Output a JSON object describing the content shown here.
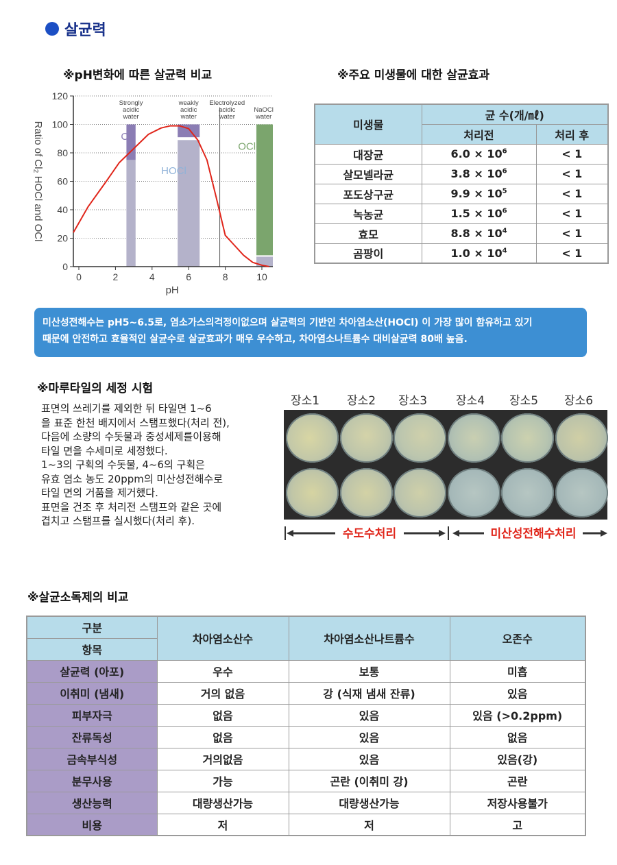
{
  "section": {
    "title": "살균력"
  },
  "chart_section": {
    "title": "※pH변화에 따른 살균력 비교"
  },
  "chart_data": {
    "type": "line",
    "ylabel": "Ratio of Cl₂ HOCl and OCl",
    "xlabel": "pH",
    "xlim": [
      -0.3,
      10.6
    ],
    "ylim": [
      0,
      120
    ],
    "x_ticks": [
      "0",
      "2",
      "4",
      "6",
      "8",
      "10"
    ],
    "y_ticks": [
      "0",
      "20",
      "40",
      "60",
      "80",
      "100",
      "120"
    ],
    "grid": true,
    "bars": [
      {
        "label": "Strongly acidic water",
        "x_from": 2.6,
        "x_to": 3.1,
        "segments": [
          {
            "name": "Cl₂",
            "from": 75,
            "to": 100,
            "color": "#8b7db4"
          },
          {
            "name": "HOCl",
            "from": 0,
            "to": 75,
            "color": "#b4b2ca"
          }
        ]
      },
      {
        "label": "weakly acidic water",
        "x_from": 5.4,
        "x_to": 6.6,
        "segments": [
          {
            "name": "Cl₂",
            "from": 91,
            "to": 100,
            "color": "#8b7db4"
          },
          {
            "name": "HOCl",
            "from": 0,
            "to": 89,
            "color": "#b4b2ca"
          }
        ]
      },
      {
        "label": "NaOCl water",
        "x_from": 9.7,
        "x_to": 10.6,
        "segments": [
          {
            "name": "OCl-",
            "from": 8,
            "to": 100,
            "color": "#7ba56d"
          },
          {
            "name": "HOCl",
            "from": 0,
            "to": 7,
            "color": "#b4b2ca"
          }
        ]
      }
    ],
    "column_labels": [
      {
        "text": [
          "Strongly",
          "acidic",
          "water"
        ],
        "x": 2.85
      },
      {
        "text": [
          "weakly",
          "acidic",
          "water"
        ],
        "x": 6.0
      },
      {
        "text": [
          "Electrolyzed",
          "acidic",
          "water"
        ],
        "x": 8.1
      },
      {
        "text": [
          "NaOCl",
          "water"
        ],
        "x": 10.1
      }
    ],
    "region_labels": [
      {
        "text": "Cl₂",
        "x": 2.3,
        "y": 92,
        "color": "#8b7db4"
      },
      {
        "text": "HOCl",
        "x": 4.5,
        "y": 68,
        "color": "#8fb2d8"
      },
      {
        "text": "OCl-",
        "x": 8.7,
        "y": 85,
        "color": "#7ba56d"
      }
    ],
    "divider_x": 7.7,
    "series": [
      {
        "color": "#e0261b",
        "x": [
          -0.3,
          0.5,
          1.5,
          2.2,
          3.0,
          3.8,
          4.5,
          5.0,
          5.5,
          6.0,
          6.5,
          7.0,
          7.5,
          8.0,
          8.5,
          9.0,
          9.5,
          10.0,
          10.4
        ],
        "y": [
          24,
          42,
          60,
          73,
          83,
          93,
          97.5,
          99,
          99,
          97,
          89,
          75,
          49,
          22,
          15,
          8,
          3,
          1,
          0
        ]
      }
    ]
  },
  "micro_section": {
    "title": "※주요 미생물에 대한 살균효과"
  },
  "micro_table": {
    "col1": "미생물",
    "group": "균 수(개/㎖)",
    "before": "처리전",
    "after": "처리 후",
    "rows": [
      {
        "name": "대장균",
        "mant": "6.0 × 10",
        "exp": "6",
        "after": "< 1"
      },
      {
        "name": "살모넬라균",
        "mant": "3.8 × 10",
        "exp": "6",
        "after": "< 1"
      },
      {
        "name": "포도상구균",
        "mant": "9.9 × 10",
        "exp": "5",
        "after": "< 1"
      },
      {
        "name": "녹농균",
        "mant": "1.5 × 10",
        "exp": "6",
        "after": "< 1"
      },
      {
        "name": "효모",
        "mant": "8.8 × 10",
        "exp": "4",
        "after": "< 1"
      },
      {
        "name": "곰팡이",
        "mant": "1.0 × 10",
        "exp": "4",
        "after": "< 1"
      }
    ]
  },
  "info": {
    "line1": "미산성전해수는 pH5~6.5로, 염소가스의걱정이없으며 살균력의 기반인 차아염소산(HOCl) 이 가장 많이 함유하고 있기",
    "line2": "때문에 안전하고 효율적인 살균수로 살균효과가 매우 우수하고, 차아염소나트륨수 대비살균력 80배 높음."
  },
  "tile_section": {
    "title": "※마루타일의 세정 시험"
  },
  "tile_text": [
    "표면의 쓰레기를 제외한 뒤 타일면 1~6",
    "을 표준 한천 배지에서 스탬프했다(처리 전),",
    "다음에 소량의 수돗물과 중성세제를이용해",
    "타일 면을 수세미로 세정했다.",
    "1~3의 구획의 수돗물, 4~6의 구획은",
    "유효 염소 농도 20ppm의 미산성전해수로",
    "타일 면의 거품을 제거했다.",
    "표면을 건조 후 처리전 스탬프와 같은 곳에",
    "겹치고 스탬프를 실시했다(처리 후)."
  ],
  "locations": [
    "장소1",
    "장소2",
    "장소3",
    "장소4",
    "장소5",
    "장소6"
  ],
  "arrows": {
    "tap": "수도수처리",
    "electrolyzed": "미산성전해수처리",
    "color": "#e0261b"
  },
  "compare_section": {
    "title": "※살균소독제의 비교"
  },
  "compare_table": {
    "h_top": "구분",
    "h_bottom": "항목",
    "cols": [
      "차아염소산수",
      "차아염소산나트륨수",
      "오존수"
    ],
    "rows": [
      {
        "label": "살균력 (아포)",
        "vals": [
          "우수",
          "보통",
          "미흡"
        ]
      },
      {
        "label": "이취미 (냄새)",
        "vals": [
          "거의 없음",
          "강 (식재 냄새 잔류)",
          "있음"
        ]
      },
      {
        "label": "피부자극",
        "vals": [
          "없음",
          "있음",
          "있음 (>0.2ppm)"
        ]
      },
      {
        "label": "잔류독성",
        "vals": [
          "없음",
          "있음",
          "없음"
        ]
      },
      {
        "label": "금속부식성",
        "vals": [
          "거의없음",
          "있음",
          "있음(강)"
        ]
      },
      {
        "label": "분무사용",
        "vals": [
          "가능",
          "곤란 (이취미 강)",
          "곤란"
        ]
      },
      {
        "label": "생산능력",
        "vals": [
          "대량생산가능",
          "대량생산가능",
          "저장사용불가"
        ]
      },
      {
        "label": "비용",
        "vals": [
          "저",
          "저",
          "고"
        ]
      }
    ]
  }
}
